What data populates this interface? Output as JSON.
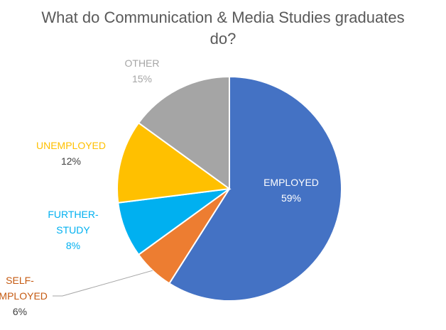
{
  "chart_data": {
    "type": "pie",
    "title_lines": [
      "What do Communication & Media Studies graduates",
      "do?"
    ],
    "slices": [
      {
        "name": "EMPLOYED",
        "label_lines": [
          "EMPLOYED"
        ],
        "value": 59,
        "value_label": "59%",
        "color": "#4472C4",
        "name_color": "#FFFFFF",
        "value_color": "#FFFFFF"
      },
      {
        "name": "SELF-EMPLOYED",
        "label_lines": [
          "SELF-",
          "EMPLOYED"
        ],
        "value": 6,
        "value_label": "6%",
        "color": "#ED7D31",
        "name_color": "#C55A11",
        "value_color": "#404040"
      },
      {
        "name": "FURTHER-STUDY",
        "label_lines": [
          "FURTHER-",
          "STUDY"
        ],
        "value": 8,
        "value_label": "8%",
        "color": "#00B0F0",
        "name_color": "#00B0F0",
        "value_color": "#00B0F0"
      },
      {
        "name": "UNEMPLOYED",
        "label_lines": [
          "UNEMPLOYED"
        ],
        "value": 12,
        "value_label": "12%",
        "color": "#FFC000",
        "name_color": "#FFC000",
        "value_color": "#404040"
      },
      {
        "name": "OTHER",
        "label_lines": [
          "OTHER"
        ],
        "value": 15,
        "value_label": "15%",
        "color": "#A5A5A5",
        "name_color": "#A5A5A5",
        "value_color": "#A5A5A5"
      }
    ],
    "legend": "none"
  }
}
